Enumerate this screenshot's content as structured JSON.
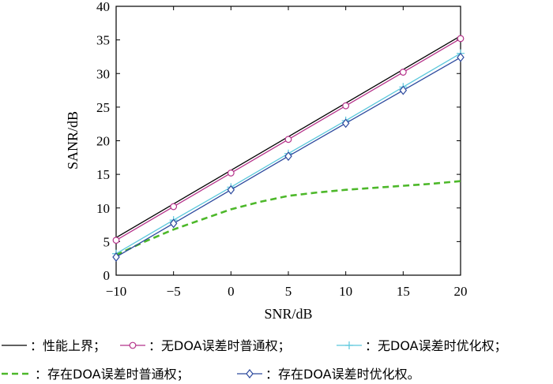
{
  "chart_data": {
    "type": "line",
    "xlabel": "SNR/dB",
    "ylabel": "SANR/dB",
    "xlim": [
      -10,
      20
    ],
    "ylim": [
      0,
      40
    ],
    "xticks": [
      -10,
      -5,
      0,
      5,
      10,
      15,
      20
    ],
    "yticks": [
      0,
      5,
      10,
      15,
      20,
      25,
      30,
      35,
      40
    ],
    "xtick_labels": [
      "−10",
      "−5",
      "0",
      "5",
      "10",
      "15",
      "20"
    ],
    "ytick_labels": [
      "0",
      "5",
      "10",
      "15",
      "20",
      "25",
      "30",
      "35",
      "40"
    ],
    "grid": false,
    "legend_position": "below",
    "series": [
      {
        "name": "：性能上界；",
        "color": "#000000",
        "style": "solid",
        "marker": "none",
        "x": [
          -10,
          20
        ],
        "y": [
          5.6,
          35.6
        ]
      },
      {
        "name": "：无DOA误差时普通权；",
        "color": "#b5338a",
        "style": "solid",
        "marker": "circle",
        "x": [
          -10,
          -5,
          0,
          5,
          10,
          15,
          20
        ],
        "y": [
          5.2,
          10.2,
          15.2,
          20.2,
          25.2,
          30.2,
          35.2
        ]
      },
      {
        "name": "：无DOA误差时优化权；",
        "color": "#5bc8dc",
        "style": "solid",
        "marker": "plus",
        "x": [
          -10,
          -5,
          0,
          5,
          10,
          15,
          20
        ],
        "y": [
          3.2,
          8.2,
          13.1,
          18.1,
          23.0,
          28.0,
          33.0
        ]
      },
      {
        "name": "：存在DOA误差时普通权；",
        "color": "#4db82a",
        "style": "dashed",
        "marker": "none",
        "x": [
          -10,
          -7.5,
          -5,
          -2.5,
          0,
          2.5,
          5,
          7.5,
          10,
          12.5,
          15,
          17.5,
          20
        ],
        "y": [
          3.0,
          5.0,
          6.8,
          8.3,
          9.8,
          10.9,
          11.8,
          12.3,
          12.7,
          13.0,
          13.3,
          13.6,
          14.0
        ]
      },
      {
        "name": "：存在DOA误差时优化权。",
        "color": "#2d4a9e",
        "style": "solid",
        "marker": "diamond",
        "x": [
          -10,
          -5,
          0,
          5,
          10,
          15,
          20
        ],
        "y": [
          2.7,
          7.7,
          12.7,
          17.7,
          22.6,
          27.5,
          32.4
        ]
      }
    ]
  }
}
